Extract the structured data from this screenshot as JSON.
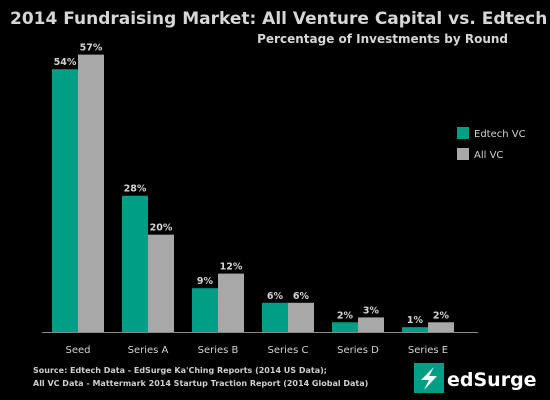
{
  "chart_data": {
    "type": "bar",
    "title": "2014 Fundraising Market: All Venture Capital vs. Edtech VC",
    "subtitle": "Percentage of Investments by Round",
    "categories": [
      "Seed",
      "Series A",
      "Series B",
      "Series C",
      "Series D",
      "Series E"
    ],
    "series": [
      {
        "name": "Edtech VC",
        "values": [
          54,
          28,
          9,
          6,
          2,
          1
        ],
        "labels": [
          "54%",
          "28%",
          "9%",
          "6%",
          "2%",
          "1%"
        ],
        "color": "#009e84"
      },
      {
        "name": "All VC",
        "values": [
          57,
          20,
          12,
          6,
          3,
          2
        ],
        "labels": [
          "57%",
          "20%",
          "12%",
          "6%",
          "3%",
          "2%"
        ],
        "color": "#a8a8a8"
      }
    ],
    "ylim": [
      0,
      60
    ],
    "xlabel": "",
    "ylabel": "",
    "grid": false,
    "legend_position": "right"
  },
  "sources": {
    "line1": "Source: Edtech Data - EdSurge Ka'Ching Reports (2014 US Data);",
    "line2": "All VC Data - Mattermark 2014 Startup Traction Report (2014 Global Data)"
  },
  "logo": {
    "text": "edSurge",
    "color": "#009e84"
  },
  "colors": {
    "background": "#000000",
    "axis": "#888888",
    "text": "#d4d4d4"
  }
}
